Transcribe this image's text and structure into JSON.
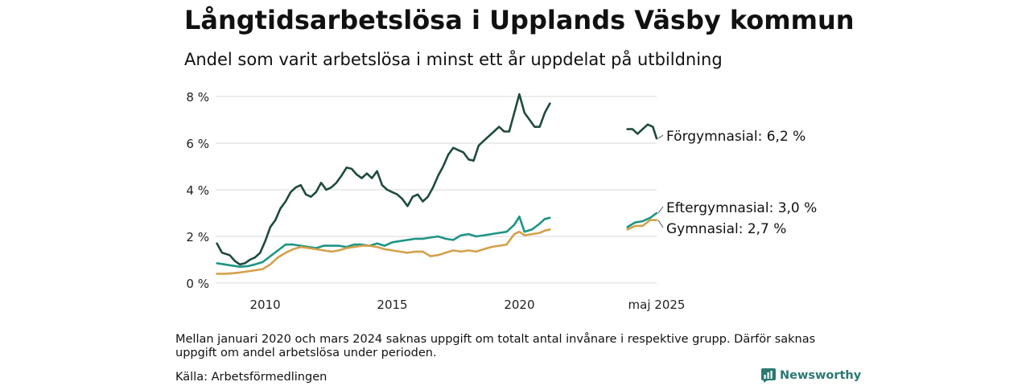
{
  "header": {
    "title": "Långtidsarbetslösa i Upplands Väsby kommun",
    "subtitle": "Andel som varit arbetslösa i minst ett år uppdelat på utbildning"
  },
  "footer": {
    "note": "Mellan januari 2020 och mars 2024 saknas uppgift om totalt antal invånare i respektive grupp. Därför saknas uppgift om andel arbetslösa under perioden.",
    "source": "Källa: Arbetsförmedlingen",
    "brand": "Newsworthy"
  },
  "chart_data": {
    "type": "line",
    "title": "Långtidsarbetslösa i Upplands Väsby kommun",
    "subtitle": "Andel som varit arbetslösa i minst ett år uppdelat på utbildning",
    "ylim": [
      0,
      8
    ],
    "yticks": [
      0,
      2,
      4,
      6,
      8
    ],
    "ytick_labels": [
      "0 %",
      "2 %",
      "4 %",
      "6 %",
      "8 %"
    ],
    "xticks": [
      2010,
      2015,
      2020,
      2025.4
    ],
    "xtick_labels": [
      "2010",
      "2015",
      "2020",
      "maj 2025"
    ],
    "grid": true,
    "series": [
      {
        "name": "Förgymnasial",
        "end_label": "Förgymnasial: 6,2 %",
        "color": "#1f4a3e",
        "segments": [
          [
            [
              2008.1,
              1.7
            ],
            [
              2008.3,
              1.3
            ],
            [
              2008.6,
              1.2
            ],
            [
              2008.8,
              0.95
            ],
            [
              2009.0,
              0.8
            ],
            [
              2009.2,
              0.85
            ],
            [
              2009.4,
              1.0
            ],
            [
              2009.6,
              1.1
            ],
            [
              2009.8,
              1.3
            ],
            [
              2010.0,
              1.8
            ],
            [
              2010.2,
              2.4
            ],
            [
              2010.4,
              2.7
            ],
            [
              2010.6,
              3.2
            ],
            [
              2010.8,
              3.5
            ],
            [
              2011.0,
              3.9
            ],
            [
              2011.2,
              4.1
            ],
            [
              2011.4,
              4.2
            ],
            [
              2011.6,
              3.8
            ],
            [
              2011.8,
              3.7
            ],
            [
              2012.0,
              3.9
            ],
            [
              2012.2,
              4.3
            ],
            [
              2012.4,
              4.0
            ],
            [
              2012.6,
              4.1
            ],
            [
              2012.8,
              4.3
            ],
            [
              2013.0,
              4.6
            ],
            [
              2013.2,
              4.95
            ],
            [
              2013.4,
              4.9
            ],
            [
              2013.6,
              4.65
            ],
            [
              2013.8,
              4.5
            ],
            [
              2014.0,
              4.7
            ],
            [
              2014.2,
              4.5
            ],
            [
              2014.4,
              4.8
            ],
            [
              2014.6,
              4.2
            ],
            [
              2014.8,
              4.0
            ],
            [
              2015.0,
              3.9
            ],
            [
              2015.2,
              3.8
            ],
            [
              2015.4,
              3.6
            ],
            [
              2015.6,
              3.3
            ],
            [
              2015.8,
              3.7
            ],
            [
              2016.0,
              3.8
            ],
            [
              2016.2,
              3.5
            ],
            [
              2016.4,
              3.7
            ],
            [
              2016.6,
              4.1
            ],
            [
              2016.8,
              4.6
            ],
            [
              2017.0,
              5.0
            ],
            [
              2017.2,
              5.5
            ],
            [
              2017.4,
              5.8
            ],
            [
              2017.6,
              5.7
            ],
            [
              2017.8,
              5.6
            ],
            [
              2018.0,
              5.3
            ],
            [
              2018.2,
              5.25
            ],
            [
              2018.4,
              5.9
            ],
            [
              2018.6,
              6.1
            ],
            [
              2018.8,
              6.3
            ],
            [
              2019.0,
              6.5
            ],
            [
              2019.2,
              6.7
            ],
            [
              2019.4,
              6.5
            ],
            [
              2019.6,
              6.5
            ],
            [
              2019.8,
              7.3
            ],
            [
              2020.0,
              8.1
            ],
            [
              2020.2,
              7.3
            ],
            [
              2020.4,
              7.0
            ],
            [
              2020.6,
              6.7
            ],
            [
              2020.8,
              6.7
            ],
            [
              2021.0,
              7.3
            ],
            [
              2021.2,
              7.7
            ]
          ],
          [
            [
              2024.25,
              6.6
            ],
            [
              2024.45,
              6.6
            ],
            [
              2024.65,
              6.4
            ],
            [
              2024.85,
              6.6
            ],
            [
              2025.05,
              6.8
            ],
            [
              2025.25,
              6.7
            ],
            [
              2025.4,
              6.2
            ]
          ]
        ]
      },
      {
        "name": "Eftergymnasial",
        "end_label": "Eftergymnasial: 3,0 %",
        "color": "#1e9484",
        "segments": [
          [
            [
              2008.1,
              0.85
            ],
            [
              2008.4,
              0.8
            ],
            [
              2008.7,
              0.75
            ],
            [
              2009.0,
              0.7
            ],
            [
              2009.3,
              0.72
            ],
            [
              2009.6,
              0.8
            ],
            [
              2009.9,
              0.9
            ],
            [
              2010.2,
              1.15
            ],
            [
              2010.5,
              1.4
            ],
            [
              2010.8,
              1.65
            ],
            [
              2011.1,
              1.65
            ],
            [
              2011.4,
              1.6
            ],
            [
              2011.7,
              1.55
            ],
            [
              2012.0,
              1.5
            ],
            [
              2012.3,
              1.6
            ],
            [
              2012.6,
              1.6
            ],
            [
              2012.9,
              1.6
            ],
            [
              2013.2,
              1.55
            ],
            [
              2013.5,
              1.65
            ],
            [
              2013.8,
              1.65
            ],
            [
              2014.1,
              1.6
            ],
            [
              2014.4,
              1.7
            ],
            [
              2014.7,
              1.6
            ],
            [
              2015.0,
              1.75
            ],
            [
              2015.3,
              1.8
            ],
            [
              2015.6,
              1.85
            ],
            [
              2015.9,
              1.9
            ],
            [
              2016.2,
              1.9
            ],
            [
              2016.5,
              1.95
            ],
            [
              2016.8,
              2.0
            ],
            [
              2017.1,
              1.9
            ],
            [
              2017.4,
              1.85
            ],
            [
              2017.7,
              2.05
            ],
            [
              2018.0,
              2.1
            ],
            [
              2018.3,
              2.0
            ],
            [
              2018.6,
              2.05
            ],
            [
              2018.9,
              2.1
            ],
            [
              2019.2,
              2.15
            ],
            [
              2019.5,
              2.2
            ],
            [
              2019.8,
              2.5
            ],
            [
              2020.0,
              2.85
            ],
            [
              2020.2,
              2.2
            ],
            [
              2020.5,
              2.3
            ],
            [
              2020.8,
              2.55
            ],
            [
              2021.0,
              2.75
            ],
            [
              2021.2,
              2.8
            ]
          ],
          [
            [
              2024.25,
              2.4
            ],
            [
              2024.55,
              2.6
            ],
            [
              2024.85,
              2.65
            ],
            [
              2025.15,
              2.8
            ],
            [
              2025.4,
              3.0
            ]
          ]
        ]
      },
      {
        "name": "Gymnasial",
        "end_label": "Gymnasial: 2,7 %",
        "color": "#d4a04a",
        "segments": [
          [
            [
              2008.1,
              0.4
            ],
            [
              2008.4,
              0.4
            ],
            [
              2008.7,
              0.42
            ],
            [
              2009.0,
              0.45
            ],
            [
              2009.3,
              0.5
            ],
            [
              2009.6,
              0.55
            ],
            [
              2009.9,
              0.6
            ],
            [
              2010.2,
              0.8
            ],
            [
              2010.5,
              1.1
            ],
            [
              2010.8,
              1.3
            ],
            [
              2011.1,
              1.45
            ],
            [
              2011.4,
              1.55
            ],
            [
              2011.7,
              1.5
            ],
            [
              2012.0,
              1.45
            ],
            [
              2012.3,
              1.4
            ],
            [
              2012.6,
              1.35
            ],
            [
              2012.9,
              1.4
            ],
            [
              2013.2,
              1.5
            ],
            [
              2013.5,
              1.55
            ],
            [
              2013.8,
              1.6
            ],
            [
              2014.1,
              1.6
            ],
            [
              2014.4,
              1.55
            ],
            [
              2014.7,
              1.45
            ],
            [
              2015.0,
              1.4
            ],
            [
              2015.3,
              1.35
            ],
            [
              2015.6,
              1.3
            ],
            [
              2015.9,
              1.35
            ],
            [
              2016.2,
              1.35
            ],
            [
              2016.5,
              1.15
            ],
            [
              2016.8,
              1.2
            ],
            [
              2017.1,
              1.3
            ],
            [
              2017.4,
              1.4
            ],
            [
              2017.7,
              1.35
            ],
            [
              2018.0,
              1.4
            ],
            [
              2018.3,
              1.35
            ],
            [
              2018.6,
              1.45
            ],
            [
              2018.9,
              1.55
            ],
            [
              2019.2,
              1.6
            ],
            [
              2019.5,
              1.65
            ],
            [
              2019.8,
              2.1
            ],
            [
              2020.0,
              2.2
            ],
            [
              2020.2,
              2.05
            ],
            [
              2020.5,
              2.1
            ],
            [
              2020.8,
              2.15
            ],
            [
              2021.0,
              2.25
            ],
            [
              2021.2,
              2.3
            ]
          ],
          [
            [
              2024.25,
              2.3
            ],
            [
              2024.55,
              2.45
            ],
            [
              2024.85,
              2.45
            ],
            [
              2025.15,
              2.7
            ],
            [
              2025.4,
              2.7
            ]
          ]
        ]
      }
    ]
  }
}
